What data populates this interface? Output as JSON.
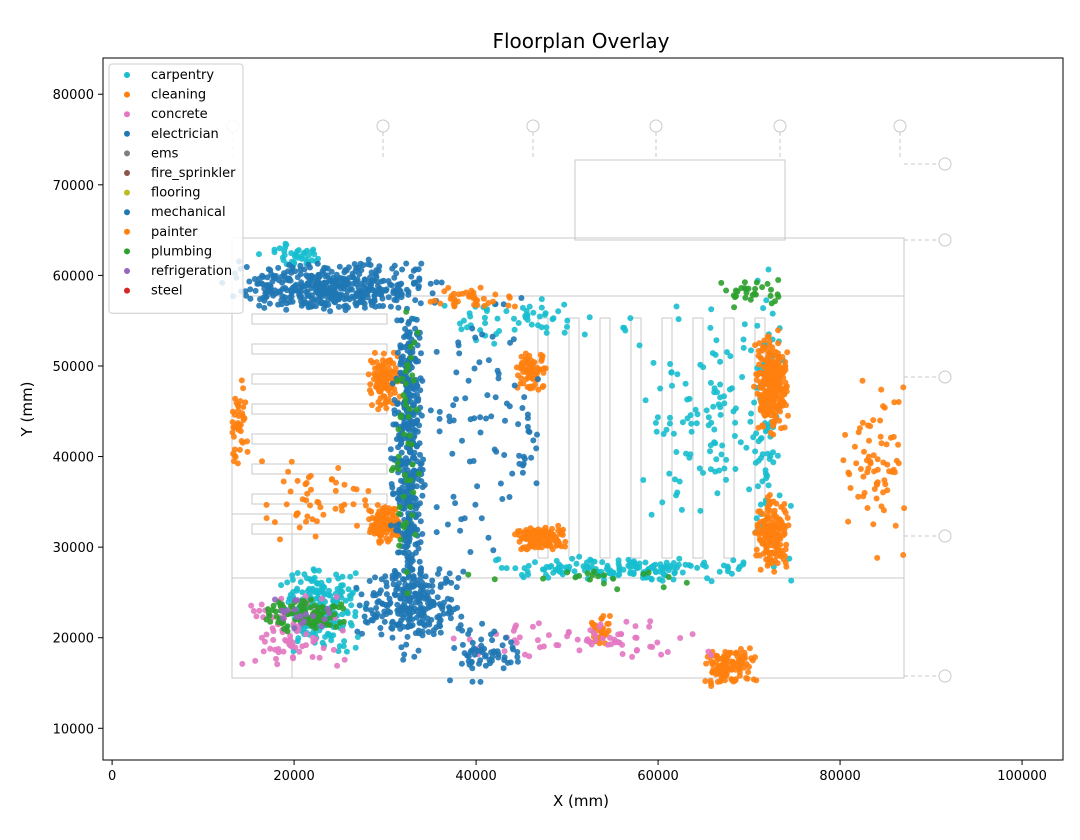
{
  "chart_data": {
    "type": "scatter",
    "title": "Floorplan Overlay",
    "xlabel": "X (mm)",
    "ylabel": "Y (mm)",
    "xlim": [
      -1000,
      104500
    ],
    "ylim": [
      6500,
      84000
    ],
    "xticks": [
      0,
      20000,
      40000,
      60000,
      80000,
      100000
    ],
    "yticks": [
      10000,
      20000,
      30000,
      40000,
      50000,
      60000,
      70000,
      80000
    ],
    "grid": false,
    "legend_position": "upper-left",
    "background_image": "architectural floorplan drawing",
    "series": [
      {
        "name": "carpentry",
        "color": "#17becf",
        "clusters": [
          [
            16000,
            60000,
            24000,
            64000,
            40
          ],
          [
            18000,
            18000,
            28000,
            28000,
            220
          ],
          [
            40000,
            26000,
            75000,
            29000,
            160
          ],
          [
            56000,
            32000,
            75000,
            58000,
            110
          ],
          [
            30000,
            52000,
            60000,
            58000,
            60
          ],
          [
            70000,
            28000,
            74000,
            62000,
            80
          ]
        ]
      },
      {
        "name": "cleaning",
        "color": "#ff7f0e",
        "clusters": [
          [
            28000,
            45000,
            32000,
            52000,
            120
          ],
          [
            28000,
            30000,
            32000,
            35000,
            110
          ],
          [
            44000,
            29500,
            50000,
            32500,
            140
          ],
          [
            44000,
            47000,
            48000,
            52000,
            70
          ],
          [
            70500,
            42000,
            74500,
            54000,
            260
          ],
          [
            70500,
            27000,
            74500,
            36000,
            160
          ],
          [
            65000,
            14500,
            71000,
            19000,
            120
          ],
          [
            52500,
            19000,
            55000,
            23000,
            35
          ],
          [
            80000,
            28000,
            88000,
            50000,
            70
          ],
          [
            13000,
            38000,
            15000,
            50000,
            40
          ],
          [
            14000,
            30000,
            30000,
            40000,
            50
          ]
        ]
      },
      {
        "name": "concrete",
        "color": "#e377c2",
        "clusters": [
          [
            14000,
            16000,
            26000,
            25000,
            80
          ],
          [
            36000,
            17000,
            68000,
            22000,
            70
          ]
        ]
      },
      {
        "name": "electrician",
        "color": "#1f77b4",
        "clusters": [
          [
            12000,
            56000,
            36000,
            62000,
            320
          ],
          [
            30500,
            16000,
            34500,
            60000,
            420
          ],
          [
            26000,
            20000,
            40000,
            28000,
            200
          ],
          [
            36000,
            14500,
            46000,
            22000,
            60
          ],
          [
            34000,
            26000,
            46000,
            60000,
            70
          ],
          [
            44000,
            35000,
            48000,
            50000,
            20
          ]
        ]
      },
      {
        "name": "ems",
        "color": "#7f7f7f",
        "clusters": []
      },
      {
        "name": "fire_sprinkler",
        "color": "#8c564b",
        "clusters": []
      },
      {
        "name": "flooring",
        "color": "#bcbd22",
        "clusters": []
      },
      {
        "name": "mechanical",
        "color": "#1f77b4",
        "clusters": [
          [
            14000,
            56000,
            34000,
            60000,
            120
          ],
          [
            31000,
            40000,
            34000,
            58000,
            60
          ]
        ]
      },
      {
        "name": "painter",
        "color": "#ff7f0e",
        "clusters": [
          [
            34000,
            56000,
            46000,
            59000,
            40
          ]
        ]
      },
      {
        "name": "plumbing",
        "color": "#2ca02c",
        "clusters": [
          [
            16000,
            20500,
            26000,
            24500,
            90
          ],
          [
            30500,
            22000,
            34000,
            58000,
            50
          ],
          [
            66000,
            56000,
            74000,
            60000,
            30
          ],
          [
            36000,
            25000,
            70000,
            28000,
            20
          ]
        ]
      },
      {
        "name": "refrigeration",
        "color": "#9467bd",
        "clusters": [
          [
            16000,
            20000,
            25000,
            25000,
            20
          ]
        ]
      },
      {
        "name": "steel",
        "color": "#d62728",
        "clusters": []
      }
    ]
  }
}
